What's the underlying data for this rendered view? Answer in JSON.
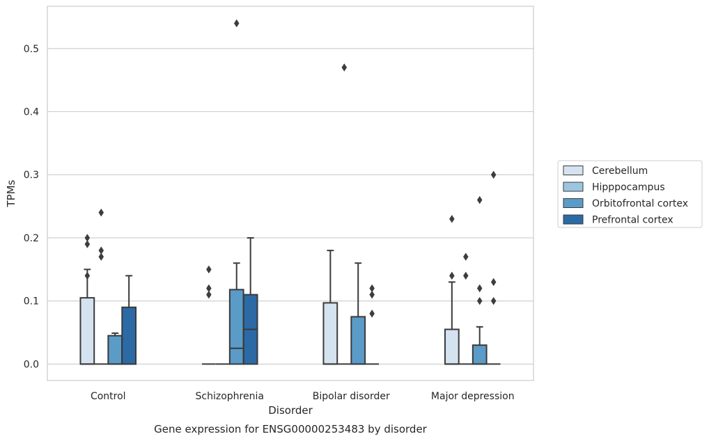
{
  "chart_data": {
    "type": "box",
    "title": "",
    "caption": "Gene expression for ENSG00000253483 by disorder",
    "xlabel": "Disorder",
    "ylabel": "TPMs",
    "ylim": [
      -0.026,
      0.567
    ],
    "yticks": [
      "0.0",
      "0.1",
      "0.2",
      "0.3",
      "0.4",
      "0.5"
    ],
    "categories": [
      "Control",
      "Schizophrenia",
      "Bipolar disorder",
      "Major depression"
    ],
    "legend_position": "right",
    "grid": "horizontal",
    "series": [
      {
        "name": "Cerebellum",
        "color": "#d5e3f1",
        "boxes": [
          {
            "category": "Control",
            "q1": 0.0,
            "median": 0.0,
            "q3": 0.105,
            "whisker_low": 0.0,
            "whisker_high": 0.15,
            "outliers": [
              0.14,
              0.19,
              0.2
            ]
          },
          {
            "category": "Schizophrenia",
            "q1": 0.0,
            "median": 0.0,
            "q3": 0.0,
            "whisker_low": 0.0,
            "whisker_high": 0.0,
            "outliers": [
              0.11,
              0.12,
              0.15
            ]
          },
          {
            "category": "Bipolar disorder",
            "q1": 0.0,
            "median": 0.0,
            "q3": 0.097,
            "whisker_low": 0.0,
            "whisker_high": 0.18,
            "outliers": []
          },
          {
            "category": "Major depression",
            "q1": 0.0,
            "median": 0.0,
            "q3": 0.055,
            "whisker_low": 0.0,
            "whisker_high": 0.13,
            "outliers": [
              0.14,
              0.23
            ]
          }
        ]
      },
      {
        "name": "Hipppocampus",
        "color": "#9cc5e0",
        "boxes": [
          {
            "category": "Control",
            "q1": 0.0,
            "median": 0.0,
            "q3": 0.0,
            "whisker_low": 0.0,
            "whisker_high": 0.0,
            "outliers": [
              0.17,
              0.18,
              0.24
            ]
          },
          {
            "category": "Schizophrenia",
            "q1": 0.0,
            "median": 0.0,
            "q3": 0.0,
            "whisker_low": 0.0,
            "whisker_high": 0.0,
            "outliers": []
          },
          {
            "category": "Bipolar disorder",
            "q1": 0.0,
            "median": 0.0,
            "q3": 0.0,
            "whisker_low": 0.0,
            "whisker_high": 0.0,
            "outliers": [
              0.47
            ]
          },
          {
            "category": "Major depression",
            "q1": 0.0,
            "median": 0.0,
            "q3": 0.0,
            "whisker_low": 0.0,
            "whisker_high": 0.0,
            "outliers": [
              0.14,
              0.17
            ]
          }
        ]
      },
      {
        "name": "Orbitofrontal cortex",
        "color": "#5b9bc8",
        "boxes": [
          {
            "category": "Control",
            "q1": 0.0,
            "median": 0.0,
            "q3": 0.045,
            "whisker_low": 0.0,
            "whisker_high": 0.049,
            "outliers": []
          },
          {
            "category": "Schizophrenia",
            "q1": 0.0,
            "median": 0.025,
            "q3": 0.118,
            "whisker_low": 0.0,
            "whisker_high": 0.16,
            "outliers": [
              0.54
            ]
          },
          {
            "category": "Bipolar disorder",
            "q1": 0.0,
            "median": 0.0,
            "q3": 0.075,
            "whisker_low": 0.0,
            "whisker_high": 0.16,
            "outliers": []
          },
          {
            "category": "Major depression",
            "q1": 0.0,
            "median": 0.0,
            "q3": 0.03,
            "whisker_low": 0.0,
            "whisker_high": 0.059,
            "outliers": [
              0.1,
              0.12,
              0.26
            ]
          }
        ]
      },
      {
        "name": "Prefrontal cortex",
        "color": "#2c6aa6",
        "boxes": [
          {
            "category": "Control",
            "q1": 0.0,
            "median": 0.0,
            "q3": 0.09,
            "whisker_low": 0.0,
            "whisker_high": 0.14,
            "outliers": []
          },
          {
            "category": "Schizophrenia",
            "q1": 0.0,
            "median": 0.055,
            "q3": 0.11,
            "whisker_low": 0.0,
            "whisker_high": 0.2,
            "outliers": []
          },
          {
            "category": "Bipolar disorder",
            "q1": 0.0,
            "median": 0.0,
            "q3": 0.0,
            "whisker_low": 0.0,
            "whisker_high": 0.0,
            "outliers": [
              0.08,
              0.11,
              0.12
            ]
          },
          {
            "category": "Major depression",
            "q1": 0.0,
            "median": 0.0,
            "q3": 0.0,
            "whisker_low": 0.0,
            "whisker_high": 0.0,
            "outliers": [
              0.1,
              0.13,
              0.3
            ]
          }
        ]
      }
    ]
  }
}
